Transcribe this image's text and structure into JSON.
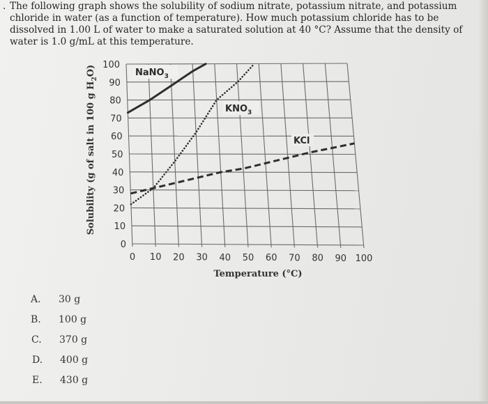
{
  "question": {
    "number_marker": ".",
    "lines": [
      "The following graph shows the solubility of sodium nitrate, potassium nitrate, and potassium",
      "chloride in water (as a function of temperature). How much potassium chloride has to be",
      "dissolved in 1.00 L of water to make a saturated solution at 40 °C? Assume that the density of",
      "water is 1.0 g/mL at this temperature."
    ]
  },
  "chart_data": {
    "type": "line",
    "title": "",
    "xlabel": "Temperature (°C)",
    "ylabel": "Solubility (g of salt in 100 g H2O)",
    "xlim": [
      0,
      100
    ],
    "ylim": [
      0,
      100
    ],
    "grid": true,
    "x_ticks": [
      "0",
      "10",
      "20",
      "30",
      "40",
      "50",
      "60",
      "70",
      "80",
      "90",
      "100"
    ],
    "y_ticks": [
      "0",
      "10",
      "20",
      "30",
      "40",
      "50",
      "60",
      "70",
      "80",
      "90",
      "100"
    ],
    "series": [
      {
        "name": "NaNO3",
        "label": "NaNO",
        "subscript": "3",
        "style": "solid",
        "x": [
          0,
          10,
          20,
          30,
          36
        ],
        "y": [
          73,
          80,
          88,
          96,
          100
        ]
      },
      {
        "name": "KNO3",
        "label": "KNO",
        "subscript": "3",
        "style": "dotted",
        "x": [
          0,
          10,
          20,
          30,
          40,
          50,
          58
        ],
        "y": [
          22,
          31,
          46,
          62,
          80,
          90,
          100
        ]
      },
      {
        "name": "KCl",
        "label": "KCl",
        "style": "dashed",
        "x": [
          0,
          10,
          20,
          30,
          40,
          50,
          60,
          70,
          80,
          100
        ],
        "y": [
          28,
          31,
          34,
          37,
          40,
          42,
          45,
          48,
          51,
          56
        ]
      }
    ],
    "legend": "inline labels"
  },
  "answers": [
    {
      "letter": "A.",
      "value": "30 g"
    },
    {
      "letter": "B.",
      "value": "100 g"
    },
    {
      "letter": "C.",
      "value": "370 g"
    },
    {
      "letter": "D.",
      "value": "400 g"
    },
    {
      "letter": "E.",
      "value": "430 g"
    }
  ]
}
